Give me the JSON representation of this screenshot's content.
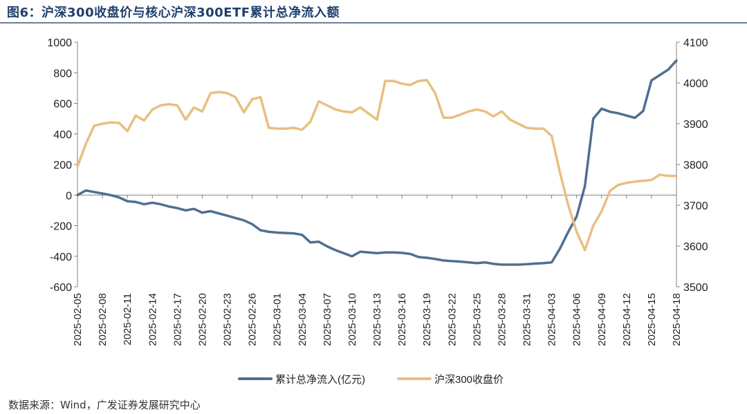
{
  "title": "图6：沪深300收盘价与核心沪深300ETF累计总净流入额",
  "source": "数据来源：Wind，广发证券发展研究中心",
  "colors": {
    "flow": "#4f6f8f",
    "index": "#e8bf80",
    "title": "#1f3f6e"
  },
  "chart_data": {
    "type": "line",
    "x_ticks": [
      "2025-02-05",
      "2025-02-08",
      "2025-02-11",
      "2025-02-14",
      "2025-02-17",
      "2025-02-20",
      "2025-02-23",
      "2025-02-26",
      "2025-03-01",
      "2025-03-04",
      "2025-03-07",
      "2025-03-10",
      "2025-03-13",
      "2025-03-16",
      "2025-03-19",
      "2025-03-22",
      "2025-03-25",
      "2025-03-28",
      "2025-03-31",
      "2025-04-03",
      "2025-04-06",
      "2025-04-09",
      "2025-04-12",
      "2025-04-15",
      "2025-04-18"
    ],
    "x_range": [
      "2025-02-05",
      "2025-04-18"
    ],
    "y_left": {
      "min": -600,
      "max": 1000,
      "ticks": [
        -600,
        -400,
        -200,
        0,
        200,
        400,
        600,
        800,
        1000
      ]
    },
    "y_right": {
      "min": 3500,
      "max": 4100,
      "ticks": [
        3500,
        3600,
        3700,
        3800,
        3900,
        4000,
        4100
      ]
    },
    "legend_position": "bottom",
    "grid": false,
    "series": [
      {
        "name": "累计总净流入(亿元)",
        "axis": "left",
        "points": [
          [
            "2025-02-05",
            0
          ],
          [
            "2025-02-06",
            30
          ],
          [
            "2025-02-07",
            20
          ],
          [
            "2025-02-08",
            10
          ],
          [
            "2025-02-09",
            0
          ],
          [
            "2025-02-10",
            -15
          ],
          [
            "2025-02-11",
            -40
          ],
          [
            "2025-02-12",
            -45
          ],
          [
            "2025-02-13",
            -60
          ],
          [
            "2025-02-14",
            -50
          ],
          [
            "2025-02-15",
            -60
          ],
          [
            "2025-02-16",
            -75
          ],
          [
            "2025-02-17",
            -85
          ],
          [
            "2025-02-18",
            -100
          ],
          [
            "2025-02-19",
            -90
          ],
          [
            "2025-02-20",
            -115
          ],
          [
            "2025-02-21",
            -105
          ],
          [
            "2025-02-22",
            -120
          ],
          [
            "2025-02-23",
            -135
          ],
          [
            "2025-02-24",
            -150
          ],
          [
            "2025-02-25",
            -165
          ],
          [
            "2025-02-26",
            -190
          ],
          [
            "2025-02-27",
            -230
          ],
          [
            "2025-02-28",
            -240
          ],
          [
            "2025-03-01",
            -245
          ],
          [
            "2025-03-02",
            -248
          ],
          [
            "2025-03-03",
            -250
          ],
          [
            "2025-03-04",
            -260
          ],
          [
            "2025-03-05",
            -310
          ],
          [
            "2025-03-06",
            -305
          ],
          [
            "2025-03-07",
            -335
          ],
          [
            "2025-03-08",
            -360
          ],
          [
            "2025-03-09",
            -380
          ],
          [
            "2025-03-10",
            -400
          ],
          [
            "2025-03-11",
            -370
          ],
          [
            "2025-03-12",
            -375
          ],
          [
            "2025-03-13",
            -380
          ],
          [
            "2025-03-14",
            -375
          ],
          [
            "2025-03-15",
            -375
          ],
          [
            "2025-03-16",
            -378
          ],
          [
            "2025-03-17",
            -385
          ],
          [
            "2025-03-18",
            -405
          ],
          [
            "2025-03-19",
            -410
          ],
          [
            "2025-03-20",
            -418
          ],
          [
            "2025-03-21",
            -428
          ],
          [
            "2025-03-22",
            -432
          ],
          [
            "2025-03-23",
            -435
          ],
          [
            "2025-03-24",
            -440
          ],
          [
            "2025-03-25",
            -445
          ],
          [
            "2025-03-26",
            -440
          ],
          [
            "2025-03-27",
            -450
          ],
          [
            "2025-03-28",
            -455
          ],
          [
            "2025-03-29",
            -455
          ],
          [
            "2025-03-30",
            -455
          ],
          [
            "2025-03-31",
            -452
          ],
          [
            "2025-04-01",
            -448
          ],
          [
            "2025-04-02",
            -445
          ],
          [
            "2025-04-03",
            -440
          ],
          [
            "2025-04-04",
            -350
          ],
          [
            "2025-04-05",
            -240
          ],
          [
            "2025-04-06",
            -140
          ],
          [
            "2025-04-07",
            60
          ],
          [
            "2025-04-08",
            500
          ],
          [
            "2025-04-09",
            565
          ],
          [
            "2025-04-10",
            545
          ],
          [
            "2025-04-11",
            535
          ],
          [
            "2025-04-12",
            520
          ],
          [
            "2025-04-13",
            505
          ],
          [
            "2025-04-14",
            550
          ],
          [
            "2025-04-15",
            750
          ],
          [
            "2025-04-16",
            785
          ],
          [
            "2025-04-17",
            820
          ],
          [
            "2025-04-18",
            880
          ]
        ]
      },
      {
        "name": "沪深300收盘价",
        "axis": "right",
        "points": [
          [
            "2025-02-05",
            3795
          ],
          [
            "2025-02-06",
            3850
          ],
          [
            "2025-02-07",
            3895
          ],
          [
            "2025-02-08",
            3900
          ],
          [
            "2025-02-09",
            3903
          ],
          [
            "2025-02-10",
            3902
          ],
          [
            "2025-02-11",
            3882
          ],
          [
            "2025-02-12",
            3920
          ],
          [
            "2025-02-13",
            3908
          ],
          [
            "2025-02-14",
            3935
          ],
          [
            "2025-02-15",
            3945
          ],
          [
            "2025-02-16",
            3948
          ],
          [
            "2025-02-17",
            3945
          ],
          [
            "2025-02-18",
            3910
          ],
          [
            "2025-02-19",
            3940
          ],
          [
            "2025-02-20",
            3930
          ],
          [
            "2025-02-21",
            3975
          ],
          [
            "2025-02-22",
            3978
          ],
          [
            "2025-02-23",
            3975
          ],
          [
            "2025-02-24",
            3965
          ],
          [
            "2025-02-25",
            3928
          ],
          [
            "2025-02-26",
            3960
          ],
          [
            "2025-02-27",
            3965
          ],
          [
            "2025-02-28",
            3890
          ],
          [
            "2025-03-01",
            3888
          ],
          [
            "2025-03-02",
            3888
          ],
          [
            "2025-03-03",
            3890
          ],
          [
            "2025-03-04",
            3885
          ],
          [
            "2025-03-05",
            3905
          ],
          [
            "2025-03-06",
            3955
          ],
          [
            "2025-03-07",
            3945
          ],
          [
            "2025-03-08",
            3935
          ],
          [
            "2025-03-09",
            3930
          ],
          [
            "2025-03-10",
            3928
          ],
          [
            "2025-03-11",
            3940
          ],
          [
            "2025-03-12",
            3925
          ],
          [
            "2025-03-13",
            3910
          ],
          [
            "2025-03-14",
            4005
          ],
          [
            "2025-03-15",
            4005
          ],
          [
            "2025-03-16",
            3998
          ],
          [
            "2025-03-17",
            3995
          ],
          [
            "2025-03-18",
            4005
          ],
          [
            "2025-03-19",
            4007
          ],
          [
            "2025-03-20",
            3975
          ],
          [
            "2025-03-21",
            3915
          ],
          [
            "2025-03-22",
            3915
          ],
          [
            "2025-03-23",
            3922
          ],
          [
            "2025-03-24",
            3930
          ],
          [
            "2025-03-25",
            3935
          ],
          [
            "2025-03-26",
            3930
          ],
          [
            "2025-03-27",
            3918
          ],
          [
            "2025-03-28",
            3930
          ],
          [
            "2025-03-29",
            3910
          ],
          [
            "2025-03-30",
            3900
          ],
          [
            "2025-03-31",
            3890
          ],
          [
            "2025-04-01",
            3888
          ],
          [
            "2025-04-02",
            3888
          ],
          [
            "2025-04-03",
            3870
          ],
          [
            "2025-04-04",
            3780
          ],
          [
            "2025-04-05",
            3700
          ],
          [
            "2025-04-06",
            3635
          ],
          [
            "2025-04-07",
            3590
          ],
          [
            "2025-04-08",
            3650
          ],
          [
            "2025-04-09",
            3685
          ],
          [
            "2025-04-10",
            3735
          ],
          [
            "2025-04-11",
            3750
          ],
          [
            "2025-04-12",
            3755
          ],
          [
            "2025-04-13",
            3758
          ],
          [
            "2025-04-14",
            3760
          ],
          [
            "2025-04-15",
            3762
          ],
          [
            "2025-04-16",
            3775
          ],
          [
            "2025-04-17",
            3772
          ],
          [
            "2025-04-18",
            3772
          ]
        ]
      }
    ]
  }
}
